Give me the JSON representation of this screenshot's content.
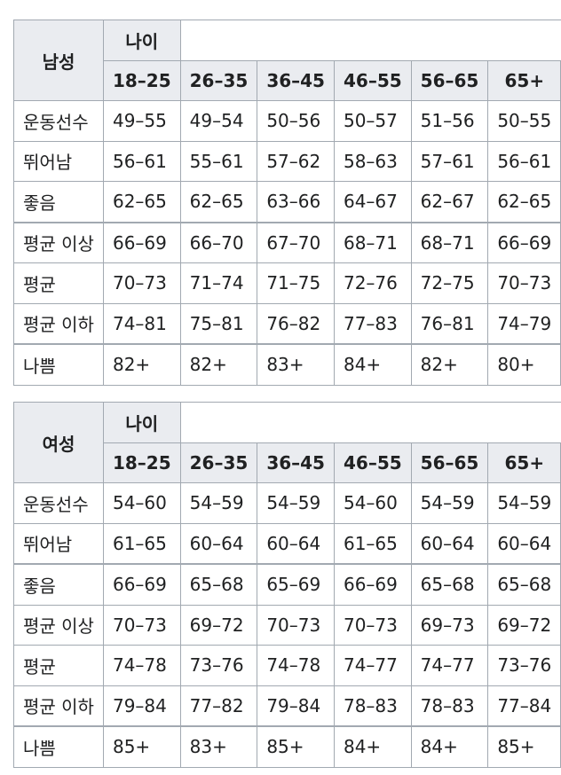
{
  "tables": [
    {
      "gender": "남성",
      "age_label": "나이",
      "age_groups": [
        "18–25",
        "26–35",
        "36–45",
        "46–55",
        "56–65",
        "65+"
      ],
      "rows": [
        {
          "label": "운동선수",
          "values": [
            "49–55",
            "49–54",
            "50–56",
            "50–57",
            "51–56",
            "50–55"
          ]
        },
        {
          "label": "뛰어남",
          "values": [
            "56–61",
            "55–61",
            "57–62",
            "58–63",
            "57–61",
            "56–61"
          ]
        },
        {
          "label": "좋음",
          "values": [
            "62–65",
            "62–65",
            "63–66",
            "64–67",
            "62–67",
            "62–65"
          ]
        },
        {
          "label": "평균 이상",
          "values": [
            "66–69",
            "66–70",
            "67–70",
            "68–71",
            "68–71",
            "66–69"
          ]
        },
        {
          "label": "평균",
          "values": [
            "70–73",
            "71–74",
            "71–75",
            "72–76",
            "72–75",
            "70–73"
          ]
        },
        {
          "label": "평균 이하",
          "values": [
            "74–81",
            "75–81",
            "76–82",
            "77–83",
            "76–81",
            "74–79"
          ]
        },
        {
          "label": "나쁨",
          "values": [
            "82+",
            "82+",
            "83+",
            "84+",
            "82+",
            "80+"
          ]
        }
      ]
    },
    {
      "gender": "여성",
      "age_label": "나이",
      "age_groups": [
        "18–25",
        "26–35",
        "36–45",
        "46–55",
        "56–65",
        "65+"
      ],
      "rows": [
        {
          "label": "운동선수",
          "values": [
            "54–60",
            "54–59",
            "54–59",
            "54–60",
            "54–59",
            "54–59"
          ]
        },
        {
          "label": "뛰어남",
          "values": [
            "61–65",
            "60–64",
            "60–64",
            "61–65",
            "60–64",
            "60–64"
          ]
        },
        {
          "label": "좋음",
          "values": [
            "66–69",
            "65–68",
            "65–69",
            "66–69",
            "65–68",
            "65–68"
          ]
        },
        {
          "label": "평균 이상",
          "values": [
            "70–73",
            "69–72",
            "70–73",
            "70–73",
            "69–73",
            "69–72"
          ]
        },
        {
          "label": "평균",
          "values": [
            "74–78",
            "73–76",
            "74–78",
            "74–77",
            "74–77",
            "73–76"
          ]
        },
        {
          "label": "평균 이하",
          "values": [
            "79–84",
            "77–82",
            "79–84",
            "78–83",
            "78–83",
            "77–84"
          ]
        },
        {
          "label": "나쁨",
          "values": [
            "85+",
            "83+",
            "85+",
            "84+",
            "84+",
            "85+"
          ]
        }
      ]
    }
  ]
}
